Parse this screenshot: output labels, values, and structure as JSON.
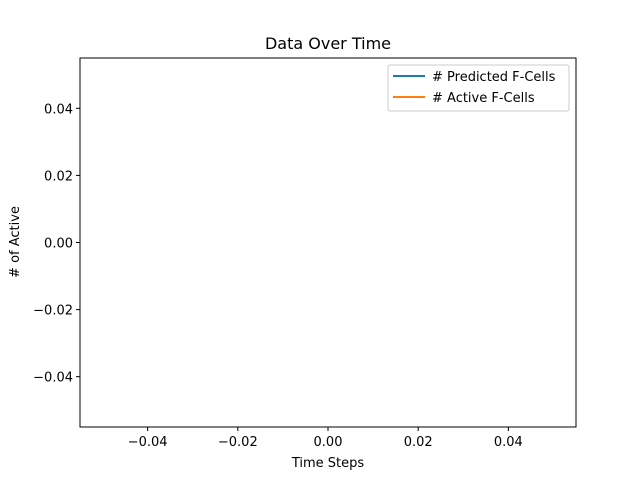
{
  "chart_data": {
    "type": "line",
    "title": "Data Over Time",
    "xlabel": "Time Steps",
    "ylabel": "# of Active",
    "xlim": [
      -0.055,
      0.055
    ],
    "ylim": [
      -0.055,
      0.055
    ],
    "x_ticks": [
      -0.04,
      -0.02,
      0.0,
      0.02,
      0.04
    ],
    "x_tick_labels": [
      "−0.04",
      "−0.02",
      "0.00",
      "0.02",
      "0.04"
    ],
    "y_ticks": [
      -0.04,
      -0.02,
      0.0,
      0.02,
      0.04
    ],
    "y_tick_labels": [
      "−0.04",
      "−0.02",
      "0.00",
      "0.02",
      "0.04"
    ],
    "grid": false,
    "legend_position": "top-right",
    "series": [
      {
        "name": "# Predicted F-Cells",
        "color": "#1f77b4",
        "x": [],
        "y": []
      },
      {
        "name": "# Active F-Cells",
        "color": "#ff7f0e",
        "x": [],
        "y": []
      }
    ]
  }
}
